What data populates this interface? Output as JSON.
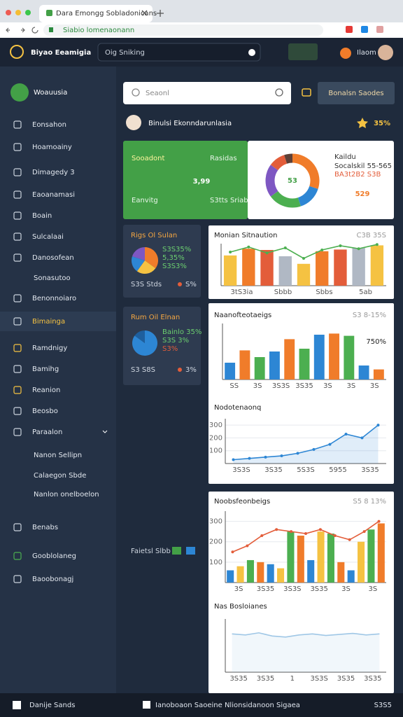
{
  "browser": {
    "tab_title": "Dara Emongg Sobladonicans",
    "url": "Siabio lomenaonann"
  },
  "header": {
    "app_name": "Biyao Eeamigia",
    "search": "Oig Sniking",
    "user": "Ilaom"
  },
  "sidebar": {
    "brand": "Woauusia",
    "active": 9,
    "items": [
      "Eonsahon",
      "Hoamoainy",
      "Dimagedy 3",
      "Eaoanamasi",
      "Boain",
      "Sulcalaai",
      "Danosofean",
      "Sonasutoo",
      "Benonnoiaro",
      "Bimainga",
      "Ramdnigy",
      "Bamihg",
      "Reanion",
      "Beosbo",
      "Paraalon",
      "Nanon Sellipn",
      "Calaegon Sbde",
      "Nanlon onelboelon",
      "Benabs",
      "Gooblolaneg",
      "Baoobonagj"
    ]
  },
  "toolbar": {
    "search_placeholder": "Seaonl",
    "button": "Bonalsn Saodes"
  },
  "welcome": {
    "title": "Binulsi Ekonndarunlasia",
    "rating": "35%"
  },
  "kpi": {
    "label": "Sooadont",
    "sub": "Rasidas",
    "value": "3,99",
    "label2": "Eanvitg",
    "note": "S3tts Sriabs"
  },
  "donut_card": {
    "center": "53",
    "label": "Kaildu",
    "sub": "Socalskil 55-565",
    "detail": "BA3t2B2 S3B",
    "value": "529",
    "segments": [
      30,
      15,
      20,
      20,
      10,
      5
    ],
    "colors": [
      "#f07c2a",
      "#2d86d4",
      "#4caf50",
      "#7e57c2",
      "#e35d3a",
      "#5d4037"
    ]
  },
  "mini_cards": [
    {
      "title": "Rigs Ol Sulan",
      "legend": [
        "S3S35%",
        "5,35%",
        "S3S3%"
      ],
      "foot": "S3S Stds",
      "foot_value": "S%",
      "segments": [
        35,
        25,
        20,
        20
      ],
      "colors": [
        "#f07c2a",
        "#f5c242",
        "#2d86d4",
        "#7e57c2"
      ]
    },
    {
      "title": "Rum Oil Elnan",
      "legend": [
        "Bainlo 35%",
        "S3S 3%",
        "S3%"
      ],
      "foot": "S3 S8S",
      "foot_value": "3%",
      "segments": [
        85,
        15
      ],
      "colors": [
        "#2d86d4",
        "#1e5f9e"
      ]
    }
  ],
  "side_note": "Faietsl Slbb",
  "bottom_bar": {
    "left": "Danije Sands",
    "center": "Ianoboaon Saoeine Nlionsidanoon Sigaea",
    "right": "S3S5"
  },
  "charts": [
    {
      "title": "Monian Sitnaution",
      "corner": "C3B 35S",
      "ylim": [
        0,
        100
      ],
      "bars": [
        72,
        88,
        85,
        70,
        52,
        82,
        86,
        90,
        96
      ],
      "bar_colors": [
        "#f5c242",
        "#f07c2a",
        "#e35d3a",
        "#b0b8c4"
      ],
      "line": [
        80,
        92,
        78,
        90,
        65,
        85,
        95,
        88,
        98
      ],
      "line_color": "#4caf50",
      "xlabels": [
        "3tS3ia",
        "Sbbb",
        "Sbbs",
        "5ab"
      ]
    },
    {
      "title": "Naanofteotaeigs",
      "corner": "S3 8-15%",
      "big": "750%",
      "ylim": [
        0,
        100
      ],
      "bars": [
        30,
        52,
        40,
        50,
        72,
        55,
        80,
        82,
        78,
        25,
        18
      ],
      "bar_colors": [
        "#2d86d4",
        "#f07c2a",
        "#4caf50"
      ],
      "xlabels": [
        "SS",
        "3S",
        "3S3S",
        "3S35",
        "3S",
        "3S",
        "3S"
      ]
    },
    {
      "title": "Nodotenaonq",
      "ylim": [
        0,
        350
      ],
      "yticks": [
        100,
        200,
        300
      ],
      "line": [
        30,
        40,
        50,
        60,
        80,
        110,
        150,
        230,
        200,
        300
      ],
      "line_color": "#2d86d4",
      "area": true,
      "xlabels": [
        "3S3S",
        "3S35",
        "5S3S",
        "5955",
        "3S35"
      ]
    },
    {
      "title": "Noobsfeonbeigs",
      "corner": "S5 8 13%",
      "ylim": [
        0,
        350
      ],
      "yticks": [
        100,
        200,
        300
      ],
      "bars": [
        60,
        80,
        110,
        100,
        90,
        70,
        250,
        230,
        110,
        250,
        240,
        100,
        60,
        200,
        260,
        290
      ],
      "bar_colors": [
        "#2d86d4",
        "#f5c242",
        "#4caf50",
        "#f07c2a"
      ],
      "line": [
        150,
        180,
        230,
        260,
        250,
        240,
        260,
        230,
        210,
        250,
        300
      ],
      "line_color": "#e35d3a",
      "xlabels": [
        "3S",
        "3S35",
        "3S3S",
        "3S35",
        "3S",
        "3S"
      ]
    },
    {
      "title": "Nas Bosloianes",
      "ylim": [
        0,
        100
      ],
      "line": [
        72,
        70,
        74,
        68,
        66,
        70,
        72,
        69,
        71,
        73,
        70,
        72
      ],
      "line_color": "#9fc7e6",
      "area": true,
      "xlabels": [
        "3S35",
        "3S35",
        "1",
        "3S3S",
        "3S35",
        "3S35"
      ]
    }
  ]
}
